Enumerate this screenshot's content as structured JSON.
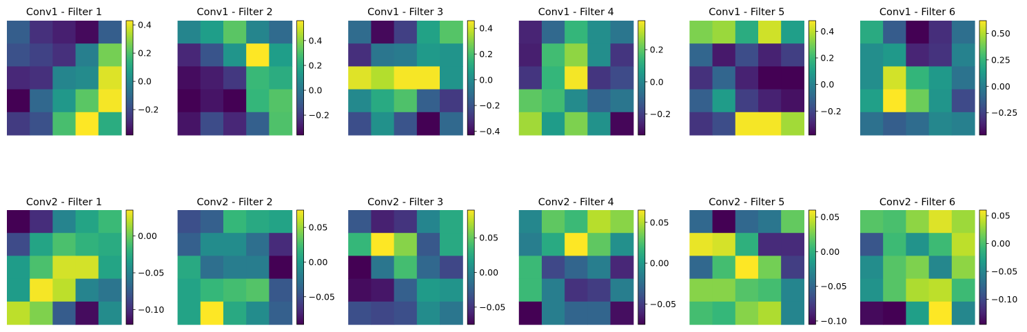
{
  "colormap": "viridis",
  "chart_data": [
    {
      "type": "heatmap",
      "title": "Conv1 - Filter 1",
      "ylim": [
        -0.38,
        0.43
      ],
      "ticks": [
        0.4,
        0.2,
        0.0,
        -0.2
      ],
      "tick_labels": [
        "0.4",
        "0.2",
        "0.0",
        "−0.2"
      ],
      "values": [
        [
          -0.14,
          -0.27,
          -0.31,
          -0.36,
          -0.14
        ],
        [
          -0.18,
          -0.22,
          -0.27,
          -0.03,
          0.26
        ],
        [
          -0.29,
          -0.27,
          -0.01,
          0.01,
          0.39
        ],
        [
          -0.38,
          -0.11,
          0.05,
          0.22,
          0.42
        ],
        [
          -0.24,
          -0.18,
          0.19,
          0.43,
          0.12
        ]
      ]
    },
    {
      "type": "heatmap",
      "title": "Conv1 - Filter 2",
      "ylim": [
        -0.36,
        0.56
      ],
      "ticks": [
        0.4,
        0.2,
        0.0,
        -0.2
      ],
      "tick_labels": [
        "0.4",
        "0.2",
        "0.0",
        "−0.2"
      ],
      "values": [
        [
          0.06,
          0.15,
          0.32,
          0.06,
          -0.04
        ],
        [
          -0.26,
          -0.12,
          0.12,
          0.56,
          0.15
        ],
        [
          -0.33,
          -0.29,
          -0.21,
          0.26,
          0.21
        ],
        [
          -0.36,
          -0.31,
          -0.36,
          0.25,
          0.31
        ],
        [
          -0.31,
          -0.15,
          -0.26,
          -0.08,
          0.3
        ]
      ]
    },
    {
      "type": "heatmap",
      "title": "Conv1 - Filter 3",
      "ylim": [
        -0.43,
        0.46
      ],
      "ticks": [
        0.4,
        0.2,
        0.0,
        -0.2,
        -0.4
      ],
      "tick_labels": [
        "0.4",
        "0.2",
        "0.0",
        "−0.2",
        "−0.4"
      ],
      "values": [
        [
          -0.12,
          -0.41,
          -0.26,
          0.08,
          0.22
        ],
        [
          -0.31,
          -0.08,
          -0.06,
          0.05,
          0.03
        ],
        [
          0.42,
          0.36,
          0.45,
          0.45,
          0.03
        ],
        [
          -0.01,
          0.11,
          0.21,
          -0.16,
          -0.28
        ],
        [
          -0.22,
          0.02,
          -0.2,
          -0.43,
          -0.13
        ]
      ]
    },
    {
      "type": "heatmap",
      "title": "Conv1 - Filter 4",
      "ylim": [
        -0.33,
        0.38
      ],
      "ticks": [
        0.2,
        0.0,
        -0.2
      ],
      "tick_labels": [
        "0.2",
        "0.0",
        "−0.2"
      ],
      "values": [
        [
          -0.26,
          -0.09,
          0.14,
          0.02,
          -0.05
        ],
        [
          -0.27,
          0.16,
          0.26,
          0.02,
          -0.22
        ],
        [
          -0.22,
          0.14,
          0.37,
          -0.22,
          -0.17
        ],
        [
          0.2,
          0.16,
          0.01,
          -0.1,
          -0.05
        ],
        [
          0.28,
          0.06,
          0.24,
          0.03,
          -0.32
        ]
      ]
    },
    {
      "type": "heatmap",
      "title": "Conv1 - Filter 5",
      "ylim": [
        -0.38,
        0.48
      ],
      "ticks": [
        0.4,
        0.2,
        0.0,
        -0.2
      ],
      "tick_labels": [
        "0.4",
        "0.2",
        "0.0",
        "−0.2"
      ],
      "values": [
        [
          0.31,
          0.35,
          0.15,
          0.42,
          0.1
        ],
        [
          -0.1,
          -0.32,
          -0.18,
          -0.3,
          -0.22
        ],
        [
          -0.26,
          -0.1,
          -0.3,
          -0.38,
          -0.38
        ],
        [
          -0.12,
          0.09,
          -0.22,
          -0.3,
          -0.34
        ],
        [
          -0.25,
          -0.18,
          0.47,
          0.47,
          0.36
        ]
      ]
    },
    {
      "type": "heatmap",
      "title": "Conv1 - Filter 6",
      "ylim": [
        -0.46,
        0.62
      ],
      "ticks": [
        0.5,
        0.25,
        0.0,
        -0.25
      ],
      "tick_labels": [
        "0.50",
        "0.25",
        "0.00",
        "−0.25"
      ],
      "values": [
        [
          0.2,
          -0.15,
          -0.46,
          -0.32,
          -0.07
        ],
        [
          0.07,
          0.12,
          -0.35,
          -0.3,
          0.02
        ],
        [
          0.07,
          0.55,
          0.25,
          0.12,
          -0.05
        ],
        [
          0.15,
          0.62,
          0.38,
          0.1,
          -0.22
        ],
        [
          -0.06,
          -0.14,
          -0.08,
          0.04,
          0.01
        ]
      ]
    },
    {
      "type": "heatmap",
      "title": "Conv2 - Filter 1",
      "ylim": [
        -0.12,
        0.035
      ],
      "ticks": [
        0.0,
        -0.05,
        -0.1
      ],
      "tick_labels": [
        "0.00",
        "−0.05",
        "−0.10"
      ],
      "values": [
        [
          -0.12,
          -0.1,
          -0.05,
          -0.03,
          -0.015
        ],
        [
          -0.085,
          -0.03,
          -0.01,
          -0.02,
          -0.025
        ],
        [
          -0.035,
          -0.01,
          0.025,
          0.025,
          -0.03
        ],
        [
          -0.035,
          0.033,
          0.02,
          -0.05,
          -0.06
        ],
        [
          0.02,
          0.005,
          -0.075,
          -0.115,
          -0.045
        ]
      ]
    },
    {
      "type": "heatmap",
      "title": "Conv2 - Filter 2",
      "ylim": [
        -0.09,
        0.075
      ],
      "ticks": [
        0.05,
        0.0,
        -0.05
      ],
      "tick_labels": [
        "0.05",
        "0.00",
        "−0.05"
      ],
      "values": [
        [
          -0.05,
          -0.04,
          0.02,
          0.01,
          0.005
        ],
        [
          -0.04,
          -0.01,
          -0.01,
          -0.03,
          -0.07
        ],
        [
          0.01,
          -0.03,
          -0.02,
          -0.02,
          -0.09
        ],
        [
          0.005,
          0.02,
          0.025,
          0.03,
          -0.045
        ],
        [
          0.005,
          0.075,
          0.01,
          -0.01,
          -0.04
        ]
      ]
    },
    {
      "type": "heatmap",
      "title": "Conv2 - Filter 3",
      "ylim": [
        -0.075,
        0.09
      ],
      "ticks": [
        0.05,
        0.0,
        -0.05
      ],
      "tick_labels": [
        "0.05",
        "0.00",
        "−0.05"
      ],
      "values": [
        [
          -0.03,
          -0.06,
          -0.05,
          0.0,
          0.025
        ],
        [
          0.035,
          0.09,
          0.06,
          -0.03,
          0.025
        ],
        [
          -0.075,
          -0.01,
          0.04,
          -0.02,
          -0.04
        ],
        [
          -0.07,
          -0.065,
          -0.025,
          0.015,
          0.01
        ],
        [
          -0.035,
          -0.04,
          -0.035,
          0.005,
          -0.01
        ]
      ]
    },
    {
      "type": "heatmap",
      "title": "Conv2 - Filter 4",
      "ylim": [
        -0.075,
        0.065
      ],
      "ticks": [
        0.05,
        0.0,
        -0.05
      ],
      "tick_labels": [
        "0.05",
        "0.00",
        "−0.05"
      ],
      "values": [
        [
          -0.01,
          0.03,
          0.02,
          0.05,
          0.04
        ],
        [
          -0.015,
          0.01,
          0.065,
          0.03,
          -0.005
        ],
        [
          0.02,
          -0.045,
          -0.03,
          -0.015,
          -0.06
        ],
        [
          0.02,
          -0.015,
          -0.055,
          -0.05,
          -0.015
        ],
        [
          -0.075,
          -0.015,
          -0.03,
          -0.03,
          -0.07
        ]
      ]
    },
    {
      "type": "heatmap",
      "title": "Conv2 - Filter 5",
      "ylim": [
        -0.105,
        0.06
      ],
      "ticks": [
        0.05,
        0.0,
        -0.05,
        -0.1
      ],
      "tick_labels": [
        "0.05",
        "0.00",
        "−0.05",
        "−0.10"
      ],
      "values": [
        [
          -0.05,
          -0.105,
          -0.05,
          -0.04,
          0.02
        ],
        [
          0.055,
          0.05,
          0.0,
          -0.085,
          -0.085
        ],
        [
          -0.05,
          0.01,
          0.06,
          0.025,
          -0.075
        ],
        [
          0.03,
          0.03,
          0.015,
          0.01,
          -0.03
        ],
        [
          0.01,
          0.005,
          0.03,
          0.04,
          -0.03
        ]
      ]
    },
    {
      "type": "heatmap",
      "title": "Conv2 - Filter 6",
      "ylim": [
        -0.145,
        0.06
      ],
      "ticks": [
        0.05,
        0.0,
        -0.05,
        -0.1
      ],
      "tick_labels": [
        "0.05",
        "0.00",
        "−0.05",
        "−0.10"
      ],
      "values": [
        [
          0.005,
          0.0,
          0.025,
          0.05,
          0.03
        ],
        [
          -0.09,
          -0.005,
          -0.04,
          -0.005,
          0.04
        ],
        [
          -0.045,
          0.005,
          0.02,
          -0.05,
          0.025
        ],
        [
          -0.04,
          0.005,
          0.035,
          0.04,
          -0.005
        ],
        [
          -0.14,
          -0.145,
          -0.03,
          0.06,
          -0.05
        ]
      ]
    }
  ]
}
